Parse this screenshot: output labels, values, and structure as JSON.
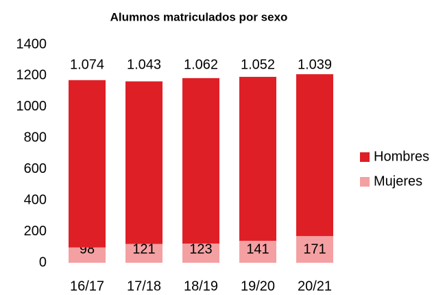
{
  "chart_data": {
    "type": "stacked_bar",
    "title": "Alumnos matriculados por sexo",
    "categories": [
      "16/17",
      "17/18",
      "18/19",
      "19/20",
      "20/21"
    ],
    "series": [
      {
        "name": "Mujeres",
        "color": "#f4a0a2",
        "values": [
          98,
          121,
          123,
          141,
          171
        ]
      },
      {
        "name": "Hombres",
        "color": "#df1f26",
        "values": [
          1074,
          1043,
          1062,
          1052,
          1039
        ],
        "value_labels": [
          "1.074",
          "1.043",
          "1.062",
          "1.052",
          "1.039"
        ]
      }
    ],
    "ylim": [
      0,
      1400
    ],
    "yticks": [
      0,
      200,
      400,
      600,
      800,
      1000,
      1200,
      1400
    ],
    "grid": false,
    "legend": "right"
  }
}
